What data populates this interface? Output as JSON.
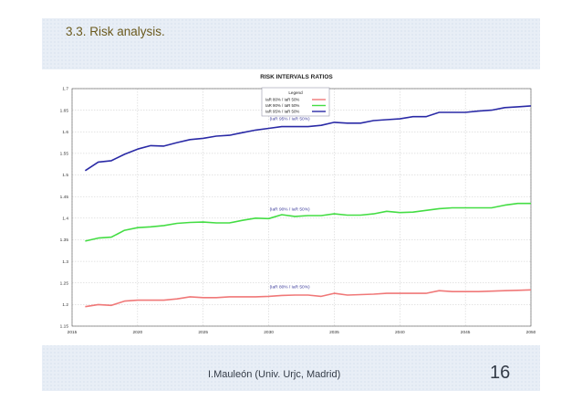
{
  "slide": {
    "title": "3.3. Risk analysis.",
    "footer": "I.Mauleón (Univ. Urjc, Madrid)",
    "page_number": "16"
  },
  "chart_data": {
    "type": "line",
    "title": "RISK INTERVALS RATIOS",
    "legend_title": "Legend",
    "legend_placement": "top-center",
    "grid": true,
    "xlim": [
      2015,
      2050
    ],
    "ylim": [
      1.15,
      1.7
    ],
    "x_ticks": [
      "2015",
      "2020",
      "2025",
      "2030",
      "2035",
      "2040",
      "2045",
      "2050"
    ],
    "y_ticks": [
      "1.15",
      "1.2",
      "1.25",
      "1.3",
      "1.35",
      "1.4",
      "1.45",
      "1.5",
      "1.55",
      "1.6",
      "1.65",
      "1.7"
    ],
    "x": [
      2016,
      2017,
      2018,
      2019,
      2020,
      2021,
      2022,
      2023,
      2024,
      2025,
      2026,
      2027,
      2028,
      2029,
      2030,
      2031,
      2032,
      2033,
      2034,
      2035,
      2036,
      2037,
      2038,
      2039,
      2040,
      2041,
      2042,
      2043,
      2044,
      2045,
      2046,
      2047,
      2048,
      2049,
      2050
    ],
    "series": [
      {
        "name": "IaR 80% / IaR 50%",
        "color": "#f07878",
        "annotation": "(IaR 80% / IaR 50%)",
        "values": [
          1.195,
          1.2,
          1.198,
          1.208,
          1.21,
          1.21,
          1.21,
          1.213,
          1.218,
          1.216,
          1.216,
          1.218,
          1.218,
          1.218,
          1.219,
          1.221,
          1.222,
          1.222,
          1.219,
          1.226,
          1.222,
          1.223,
          1.224,
          1.226,
          1.226,
          1.226,
          1.226,
          1.232,
          1.23,
          1.23,
          1.23,
          1.231,
          1.232,
          1.233,
          1.234
        ]
      },
      {
        "name": "IaR 90% / IaR 50%",
        "color": "#44dd44",
        "annotation": "(IaR 90% / IaR 50%)",
        "values": [
          1.347,
          1.354,
          1.356,
          1.372,
          1.378,
          1.38,
          1.383,
          1.388,
          1.39,
          1.391,
          1.389,
          1.389,
          1.395,
          1.4,
          1.399,
          1.408,
          1.404,
          1.406,
          1.406,
          1.41,
          1.407,
          1.407,
          1.41,
          1.416,
          1.413,
          1.414,
          1.418,
          1.422,
          1.424,
          1.424,
          1.424,
          1.424,
          1.43,
          1.434,
          1.434
        ]
      },
      {
        "name": "IaR 95% / IaR 50%",
        "color": "#2a2aa6",
        "annotation": "(IaR 95% / IaR 50%)",
        "values": [
          1.51,
          1.53,
          1.533,
          1.548,
          1.56,
          1.568,
          1.567,
          1.575,
          1.582,
          1.585,
          1.59,
          1.592,
          1.598,
          1.604,
          1.608,
          1.612,
          1.612,
          1.612,
          1.615,
          1.622,
          1.62,
          1.62,
          1.626,
          1.628,
          1.63,
          1.635,
          1.635,
          1.645,
          1.645,
          1.645,
          1.648,
          1.65,
          1.656,
          1.658,
          1.66
        ]
      }
    ]
  }
}
